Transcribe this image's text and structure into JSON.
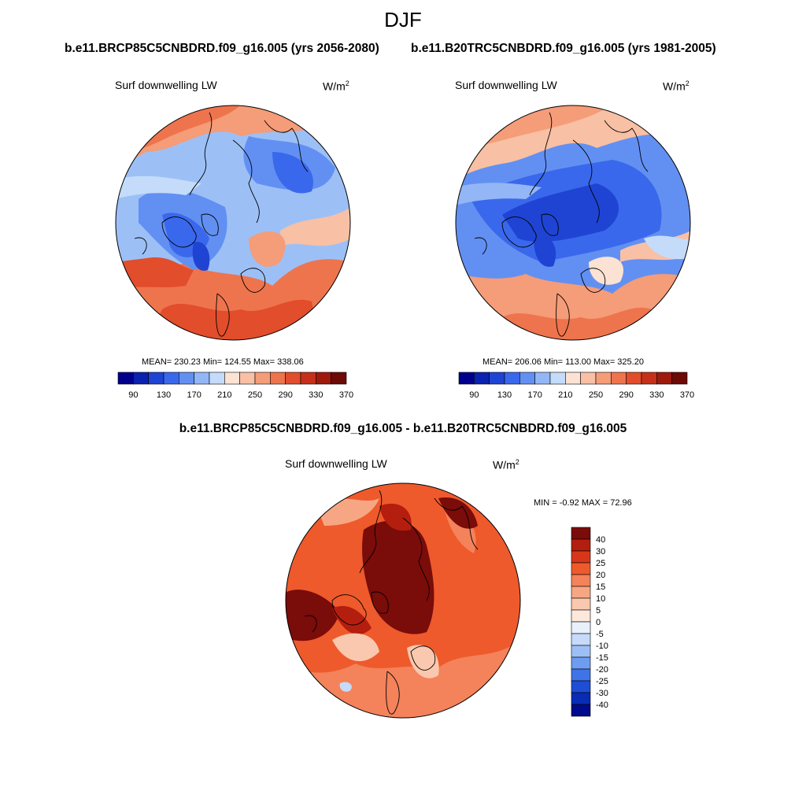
{
  "title": "DJF",
  "panels": {
    "left": {
      "case_title": "b.e11.BRCP85C5CNBDRD.f09_g16.005 (yrs 2056-2080)",
      "variable": "Surf downwelling LW",
      "units": "W/m",
      "units_sup": "2",
      "stats": "MEAN= 230.23  Min= 124.55  Max= 338.06"
    },
    "right": {
      "case_title": "b.e11.B20TRC5CNBDRD.f09_g16.005 (yrs 1981-2005)",
      "variable": "Surf downwelling LW",
      "units": "W/m",
      "units_sup": "2",
      "stats": "MEAN= 206.06  Min= 113.00  Max= 325.20"
    },
    "diff": {
      "case_title": "b.e11.BRCP85C5CNBDRD.f09_g16.005 - b.e11.B20TRC5CNBDRD.f09_g16.005",
      "variable": "Surf downwelling LW",
      "units": "W/m",
      "units_sup": "2",
      "stats": "MIN =  -0.92 MAX =  72.96"
    }
  },
  "colorbar_abs": {
    "tick_labels": [
      "90",
      "130",
      "170",
      "210",
      "250",
      "290",
      "330",
      "370"
    ],
    "colors": [
      "#00008c",
      "#0b22b0",
      "#1f44d4",
      "#3a68ec",
      "#6290f2",
      "#93b6f6",
      "#c4dcfa",
      "#fbe2d2",
      "#f8c0a4",
      "#f59c78",
      "#ee744e",
      "#e24d2c",
      "#c6301a",
      "#9e1a0c",
      "#6e0a06"
    ]
  },
  "colorbar_diff": {
    "tick_labels": [
      "40",
      "30",
      "25",
      "20",
      "15",
      "10",
      "5",
      "0",
      "-5",
      "-10",
      "-15",
      "-20",
      "-25",
      "-30",
      "-40"
    ],
    "colors": [
      "#7a0c0a",
      "#b41e0e",
      "#d8361a",
      "#ee5a2c",
      "#f4825a",
      "#f7a684",
      "#fac8ae",
      "#fde8dc",
      "#e8f0fb",
      "#c6dafa",
      "#9cc0f6",
      "#6e9cf0",
      "#3f74e6",
      "#1f4ed6",
      "#0a2cb4",
      "#000a8c"
    ]
  }
}
